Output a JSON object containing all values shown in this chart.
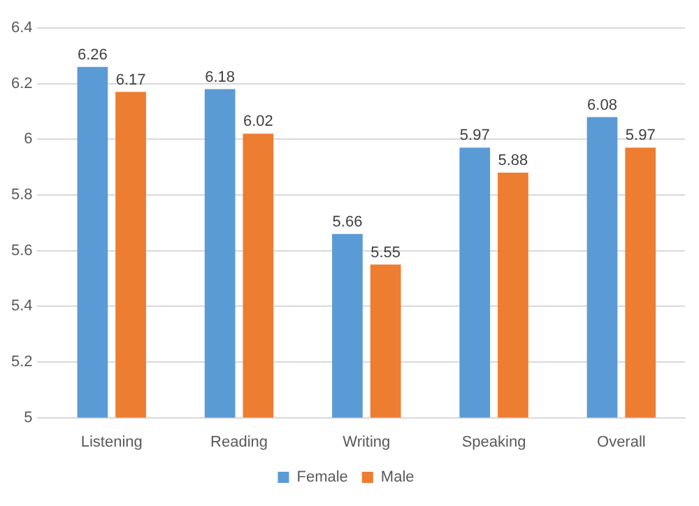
{
  "chart_data": {
    "type": "bar",
    "categories": [
      "Listening",
      "Reading",
      "Writing",
      "Speaking",
      "Overall"
    ],
    "series": [
      {
        "name": "Female",
        "color": "#5b9bd5",
        "values": [
          6.26,
          6.18,
          5.66,
          5.97,
          6.08
        ]
      },
      {
        "name": "Male",
        "color": "#ed7d31",
        "values": [
          6.17,
          6.02,
          5.55,
          5.88,
          5.97
        ]
      }
    ],
    "ylim": [
      5,
      6.4
    ],
    "yticks": [
      5,
      5.2,
      5.4,
      5.6,
      5.8,
      6,
      6.2,
      6.4
    ],
    "grid": "y",
    "legend": "bottom",
    "data_labels": true
  }
}
